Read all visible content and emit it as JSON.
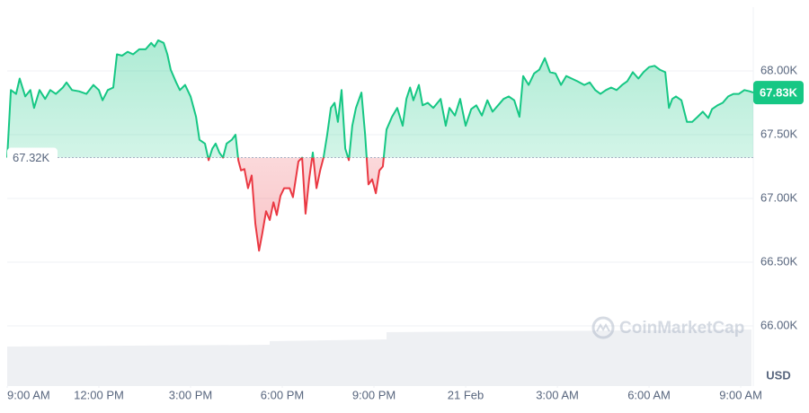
{
  "chart_data": {
    "type": "line",
    "unit": "USD",
    "watermark": "CoinMarketCap",
    "xlim": [
      0,
      24.41
    ],
    "ylim": [
      65500,
      68500
    ],
    "xticks": [
      {
        "value": 0,
        "label": "9:00 AM"
      },
      {
        "value": 3,
        "label": "12:00 PM"
      },
      {
        "value": 6,
        "label": "3:00 PM"
      },
      {
        "value": 9,
        "label": "6:00 PM"
      },
      {
        "value": 12,
        "label": "9:00 PM"
      },
      {
        "value": 15,
        "label": "21 Feb"
      },
      {
        "value": 18,
        "label": "3:00 AM"
      },
      {
        "value": 21,
        "label": "6:00 AM"
      },
      {
        "value": 24,
        "label": "9:00 AM"
      }
    ],
    "yticks": [
      {
        "value": 66000,
        "label": "66.00K"
      },
      {
        "value": 66500,
        "label": "66.50K"
      },
      {
        "value": 67000,
        "label": "67.00K"
      },
      {
        "value": 67500,
        "label": "67.50K"
      },
      {
        "value": 68000,
        "label": "68.00K"
      }
    ],
    "baseline": {
      "value": 67320,
      "label": "67.32K"
    },
    "last_price": {
      "value": 67830,
      "label": "67.83K"
    },
    "up_color": "#16c784",
    "down_color": "#ea3943",
    "grid": true,
    "x": [
      0,
      0.12,
      0.29,
      0.41,
      0.59,
      0.76,
      0.88,
      1.06,
      1.24,
      1.41,
      1.59,
      1.82,
      1.94,
      2.12,
      2.35,
      2.59,
      2.82,
      3,
      3.12,
      3.29,
      3.47,
      3.59,
      3.76,
      3.94,
      4.12,
      4.32,
      4.53,
      4.71,
      4.82,
      4.94,
      5.12,
      5.24,
      5.35,
      5.53,
      5.65,
      5.82,
      6,
      6.18,
      6.29,
      6.47,
      6.59,
      6.71,
      6.82,
      6.94,
      7.06,
      7.18,
      7.35,
      7.47,
      7.56,
      7.65,
      7.76,
      7.88,
      8,
      8.12,
      8.24,
      8.35,
      8.47,
      8.59,
      8.71,
      8.82,
      8.94,
      9.06,
      9.24,
      9.35,
      9.53,
      9.65,
      9.76,
      9.88,
      10,
      10.12,
      10.24,
      10.35,
      10.47,
      10.59,
      10.71,
      10.82,
      10.94,
      11.06,
      11.18,
      11.29,
      11.41,
      11.59,
      11.71,
      11.82,
      11.94,
      12.06,
      12.18,
      12.29,
      12.41,
      12.59,
      12.76,
      12.94,
      13.06,
      13.18,
      13.29,
      13.47,
      13.59,
      13.76,
      13.94,
      14.18,
      14.35,
      14.47,
      14.65,
      14.82,
      15,
      15.18,
      15.35,
      15.53,
      15.71,
      15.88,
      16.06,
      16.24,
      16.41,
      16.59,
      16.76,
      16.88,
      17.06,
      17.24,
      17.41,
      17.59,
      17.76,
      17.94,
      18.12,
      18.29,
      18.47,
      18.65,
      18.88,
      19.06,
      19.24,
      19.41,
      19.59,
      19.76,
      19.94,
      20.12,
      20.29,
      20.47,
      20.65,
      20.82,
      21,
      21.18,
      21.35,
      21.53,
      21.65,
      21.76,
      21.88,
      22.06,
      22.24,
      22.41,
      22.59,
      22.76,
      22.94,
      23.06,
      23.24,
      23.41,
      23.59,
      23.76,
      23.94,
      24.12,
      24.29,
      24.41
    ],
    "values": [
      67320,
      67850,
      67820,
      67940,
      67800,
      67850,
      67710,
      67850,
      67780,
      67850,
      67820,
      67870,
      67910,
      67850,
      67840,
      67820,
      67890,
      67850,
      67770,
      67850,
      67870,
      68130,
      68120,
      68150,
      68130,
      68170,
      68170,
      68220,
      68190,
      68240,
      68220,
      68130,
      68010,
      67910,
      67850,
      67890,
      67800,
      67640,
      67460,
      67430,
      67300,
      67390,
      67430,
      67360,
      67320,
      67430,
      67460,
      67500,
      67300,
      67220,
      67230,
      67080,
      67180,
      66800,
      66590,
      66730,
      66900,
      66830,
      66970,
      66870,
      67020,
      67080,
      67080,
      67010,
      67290,
      67320,
      66880,
      67150,
      67360,
      67080,
      67220,
      67320,
      67500,
      67710,
      67750,
      67600,
      67850,
      67390,
      67300,
      67570,
      67710,
      67830,
      67500,
      67110,
      67150,
      67040,
      67220,
      67250,
      67540,
      67640,
      67710,
      67570,
      67780,
      67870,
      67770,
      67890,
      67730,
      67750,
      67710,
      67780,
      67570,
      67710,
      67650,
      67780,
      67570,
      67700,
      67730,
      67650,
      67770,
      67680,
      67730,
      67780,
      67800,
      67770,
      67640,
      67960,
      67890,
      67980,
      68010,
      68100,
      67990,
      67980,
      67890,
      67960,
      67940,
      67920,
      67890,
      67910,
      67850,
      67820,
      67850,
      67870,
      67850,
      67890,
      67920,
      67990,
      67940,
      67990,
      68030,
      68040,
      68010,
      67990,
      67710,
      67780,
      67800,
      67770,
      67600,
      67600,
      67640,
      67680,
      67630,
      67700,
      67730,
      67750,
      67800,
      67820,
      67820,
      67850,
      67840,
      67830
    ]
  }
}
